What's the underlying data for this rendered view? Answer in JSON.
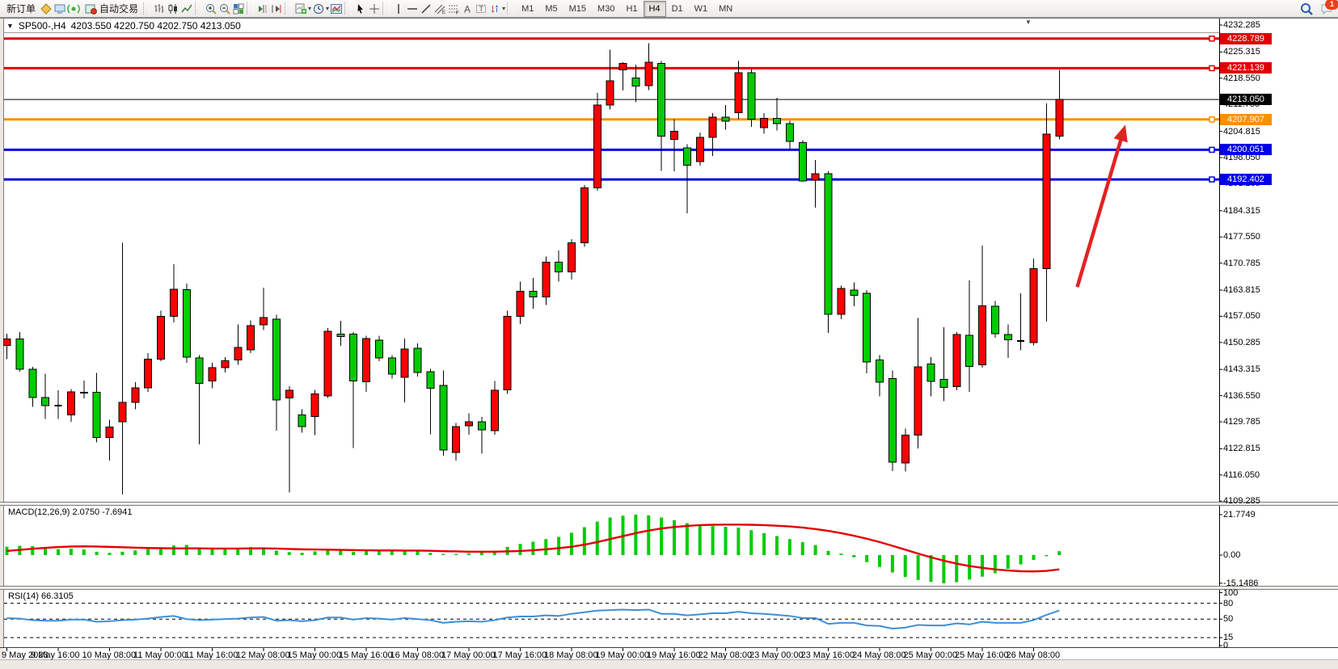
{
  "toolbar": {
    "new_order_label": "新订单",
    "auto_trading_label": "自动交易",
    "timeframes": [
      "M1",
      "M5",
      "M15",
      "M30",
      "H1",
      "H4",
      "D1",
      "W1",
      "MN"
    ],
    "active_timeframe": "H4",
    "notification_badge": "1"
  },
  "chart_title": {
    "dropdown_icon": "▼",
    "symbol_period": "SP500-,H4",
    "ohlc": "4203.550 4220.750 4202.750 4213.050"
  },
  "chart_data": {
    "type": "candlestick",
    "symbol": "SP500-",
    "period": "H4",
    "up_color": "#FF0000",
    "down_color": "#00CC00",
    "wick_color": "#000000",
    "price_axis_ticks": [
      "4232.285",
      "4225.315",
      "4218.550",
      "4211.785",
      "4204.815",
      "4198.050",
      "4191.285",
      "4184.315",
      "4177.550",
      "4170.785",
      "4163.815",
      "4157.050",
      "4150.285",
      "4143.315",
      "4136.550",
      "4129.785",
      "4122.815",
      "4116.050",
      "4109.285"
    ],
    "hlines": [
      {
        "price": 4228.789,
        "label": "4228.789",
        "color": "#DD0000",
        "width": 3,
        "current": false
      },
      {
        "price": 4221.139,
        "label": "4221.139",
        "color": "#DD0000",
        "width": 3,
        "current": false
      },
      {
        "price": 4213.05,
        "label": "4213.050",
        "color": "#000000",
        "width": 1,
        "current": true
      },
      {
        "price": 4207.907,
        "label": "4207.907",
        "color": "#FF8E00",
        "width": 3,
        "current": false
      },
      {
        "price": 4200.051,
        "label": "4200.051",
        "color": "#0000E6",
        "width": 3,
        "current": false
      },
      {
        "price": 4192.402,
        "label": "4192.402",
        "color": "#0000E6",
        "width": 3,
        "current": false
      }
    ],
    "time_labels": [
      "9 May 2023",
      "9 May 16:00",
      "10 May 08:00",
      "11 May 00:00",
      "11 May 16:00",
      "12 May 08:00",
      "15 May 00:00",
      "15 May 16:00",
      "16 May 08:00",
      "17 May 00:00",
      "17 May 16:00",
      "18 May 08:00",
      "19 May 00:00",
      "19 May 16:00",
      "22 May 08:00",
      "23 May 00:00",
      "23 May 16:00",
      "24 May 08:00",
      "25 May 00:00",
      "25 May 16:00",
      "26 May 08:00"
    ],
    "bars_per_label": 4,
    "candles": [
      [
        4149.5,
        4152.5,
        4146.0,
        4151.2
      ],
      [
        4151.2,
        4153.0,
        4142.7,
        4143.4
      ],
      [
        4143.4,
        4144.0,
        4133.7,
        4136.1
      ],
      [
        4136.1,
        4142.2,
        4130.5,
        4134.0
      ],
      [
        4134.0,
        4137.9,
        4130.5,
        4134.0
      ],
      [
        4131.6,
        4138.2,
        4129.8,
        4137.5
      ],
      [
        4137.4,
        4140.4,
        4135.8,
        4137.2
      ],
      [
        4137.4,
        4142.4,
        4124.5,
        4125.7
      ],
      [
        4125.7,
        4130.3,
        4119.8,
        4128.4
      ],
      [
        4129.8,
        4176.0,
        4111.0,
        4134.8
      ],
      [
        4134.8,
        4140.0,
        4133.0,
        4138.6
      ],
      [
        4138.6,
        4147.5,
        4137.5,
        4146.0
      ],
      [
        4146.0,
        4158.5,
        4145.5,
        4157.0
      ],
      [
        4157.0,
        4170.5,
        4155.5,
        4164.0
      ],
      [
        4163.9,
        4165.5,
        4145.0,
        4146.5
      ],
      [
        4146.3,
        4147.0,
        4124.0,
        4139.7
      ],
      [
        4140.3,
        4145.0,
        4138.5,
        4143.8
      ],
      [
        4143.8,
        4146.5,
        4142.5,
        4145.6
      ],
      [
        4145.8,
        4154.9,
        4144.5,
        4149.0
      ],
      [
        4148.4,
        4156.0,
        4147.5,
        4154.6
      ],
      [
        4154.8,
        4164.4,
        4153.5,
        4156.7
      ],
      [
        4156.3,
        4157.5,
        4127.5,
        4135.4
      ],
      [
        4136.0,
        4139.0,
        4111.5,
        4137.9
      ],
      [
        4131.6,
        4133.0,
        4127.0,
        4128.5
      ],
      [
        4131.2,
        4138.0,
        4126.4,
        4137.0
      ],
      [
        4136.5,
        4154.0,
        4136.0,
        4153.2
      ],
      [
        4152.4,
        4155.9,
        4149.4,
        4151.8
      ],
      [
        4152.4,
        4153.0,
        4123.0,
        4140.3
      ],
      [
        4140.1,
        4152.0,
        4137.5,
        4151.3
      ],
      [
        4150.9,
        4152.0,
        4145.5,
        4146.3
      ],
      [
        4146.3,
        4147.0,
        4141.0,
        4142.1
      ],
      [
        4141.3,
        4151.3,
        4134.8,
        4148.6
      ],
      [
        4148.8,
        4150.0,
        4141.5,
        4142.5
      ],
      [
        4142.7,
        4143.5,
        4126.6,
        4138.5
      ],
      [
        4139.2,
        4143.0,
        4121.0,
        4122.5
      ],
      [
        4121.9,
        4129.5,
        4119.8,
        4128.5
      ],
      [
        4128.7,
        4132.0,
        4126.5,
        4129.8
      ],
      [
        4129.8,
        4131.0,
        4121.5,
        4127.7
      ],
      [
        4127.5,
        4140.3,
        4126.5,
        4137.9
      ],
      [
        4138.0,
        4158.5,
        4137.0,
        4157.0
      ],
      [
        4157.0,
        4166.0,
        4155.0,
        4163.5
      ],
      [
        4163.5,
        4167.0,
        4159.0,
        4162.0
      ],
      [
        4162.0,
        4172.5,
        4160.0,
        4171.0
      ],
      [
        4171.0,
        4174.0,
        4166.0,
        4168.5
      ],
      [
        4168.5,
        4177.0,
        4166.5,
        4176.0
      ],
      [
        4176.0,
        4191.0,
        4175.0,
        4190.2
      ],
      [
        4190.2,
        4214.7,
        4189.5,
        4211.6
      ],
      [
        4211.6,
        4225.9,
        4210.5,
        4217.9
      ],
      [
        4220.7,
        4222.7,
        4215.4,
        4222.4
      ],
      [
        4218.6,
        4222.1,
        4212.3,
        4216.5
      ],
      [
        4216.6,
        4227.6,
        4215.5,
        4222.7
      ],
      [
        4222.4,
        4223.0,
        4194.6,
        4203.6
      ],
      [
        4202.7,
        4208.0,
        4194.5,
        4204.8
      ],
      [
        4200.6,
        4201.5,
        4183.6,
        4196.1
      ],
      [
        4197.0,
        4204.5,
        4196.0,
        4203.3
      ],
      [
        4203.3,
        4209.5,
        4198.5,
        4208.5
      ],
      [
        4208.5,
        4211.6,
        4205.3,
        4207.4
      ],
      [
        4209.6,
        4223.1,
        4208.0,
        4220.0
      ],
      [
        4220.0,
        4220.8,
        4206.0,
        4208.0
      ],
      [
        4205.8,
        4209.5,
        4204.2,
        4208.2
      ],
      [
        4208.2,
        4213.5,
        4205.0,
        4206.8
      ],
      [
        4206.8,
        4207.5,
        4200.1,
        4202.2
      ],
      [
        4201.9,
        4202.5,
        4191.8,
        4192.0
      ],
      [
        4192.2,
        4197.4,
        4185.1,
        4193.9
      ],
      [
        4193.9,
        4194.5,
        4152.8,
        4157.6
      ],
      [
        4157.6,
        4165.0,
        4156.3,
        4164.2
      ],
      [
        4163.8,
        4165.8,
        4159.6,
        4162.5
      ],
      [
        4163.0,
        4163.8,
        4142.3,
        4145.2
      ],
      [
        4145.8,
        4147.0,
        4136.4,
        4140.0
      ],
      [
        4141.0,
        4143.0,
        4117.1,
        4119.4
      ],
      [
        4119.1,
        4128.0,
        4117.0,
        4126.3
      ],
      [
        4126.3,
        4156.6,
        4122.9,
        4144.0
      ],
      [
        4144.7,
        4146.5,
        4136.4,
        4140.2
      ],
      [
        4140.8,
        4154.2,
        4135.1,
        4138.7
      ],
      [
        4138.9,
        4153.0,
        4137.9,
        4152.3
      ],
      [
        4152.1,
        4166.3,
        4137.5,
        4144.1
      ],
      [
        4144.5,
        4175.3,
        4143.8,
        4159.8
      ],
      [
        4159.6,
        4161.0,
        4151.5,
        4152.5
      ],
      [
        4152.3,
        4154.9,
        4146.3,
        4151.0
      ],
      [
        4150.7,
        4163.0,
        4148.3,
        4150.7
      ],
      [
        4150.3,
        4172.0,
        4149.5,
        4169.3
      ],
      [
        4169.3,
        4212.0,
        4155.7,
        4204.1
      ],
      [
        4203.55,
        4220.75,
        4202.75,
        4213.05
      ]
    ],
    "annotations": {
      "arrow": {
        "from_bar": 83.4,
        "from_price": 4164.6,
        "to_bar": 87.0,
        "to_price": 4204.9,
        "color": "#E32222"
      }
    },
    "macd": {
      "label": "MACD(12,26,9)",
      "value_text": "2.0750 -7.6941",
      "axis_ticks": [
        "21.7749",
        "0.00",
        "-15.1486"
      ],
      "axis_tick_values": [
        21.7749,
        0,
        -15.1486
      ],
      "histogram_color": "#00CC00",
      "signal_color": "#E00000",
      "histogram": [
        4.5,
        5.0,
        4.8,
        3.8,
        3.2,
        3.5,
        3.0,
        1.8,
        1.2,
        1.8,
        2.5,
        3.2,
        4.2,
        5.2,
        5.5,
        4.0,
        3.2,
        3.4,
        3.8,
        4.3,
        4.2,
        2.4,
        1.6,
        1.2,
        2.0,
        3.4,
        3.2,
        1.8,
        2.2,
        2.6,
        2.2,
        2.6,
        2.2,
        1.2,
        0.6,
        0.6,
        1.0,
        1.4,
        2.4,
        4.4,
        6.0,
        7.2,
        8.6,
        9.8,
        12.0,
        15.0,
        18.0,
        20.2,
        21.2,
        21.77,
        21.4,
        20.2,
        18.8,
        17.2,
        16.2,
        15.6,
        15.2,
        14.8,
        13.4,
        11.8,
        10.2,
        8.6,
        7.0,
        5.4,
        2.2,
        0.8,
        -1.2,
        -3.8,
        -6.4,
        -9.4,
        -11.8,
        -13.4,
        -14.4,
        -15.15,
        -14.6,
        -13.2,
        -11.6,
        -9.8,
        -7.4,
        -5.0,
        -2.6,
        -0.6,
        2.08
      ],
      "signal": [
        2.2,
        2.8,
        3.4,
        3.9,
        4.3,
        4.6,
        4.7,
        4.6,
        4.4,
        4.2,
        4.0,
        3.8,
        3.7,
        3.6,
        3.6,
        3.6,
        3.5,
        3.5,
        3.5,
        3.6,
        3.6,
        3.5,
        3.3,
        3.1,
        3.0,
        2.9,
        2.8,
        2.7,
        2.6,
        2.5,
        2.5,
        2.4,
        2.4,
        2.3,
        2.1,
        2.0,
        1.8,
        1.8,
        1.8,
        2.0,
        2.2,
        2.6,
        3.1,
        3.7,
        4.5,
        5.6,
        7.0,
        8.6,
        10.2,
        11.8,
        13.2,
        14.3,
        15.1,
        15.7,
        16.1,
        16.3,
        16.4,
        16.4,
        16.3,
        16.1,
        15.8,
        15.4,
        14.8,
        14.0,
        13.0,
        11.8,
        10.4,
        8.8,
        7.0,
        5.0,
        2.9,
        0.8,
        -1.2,
        -3.0,
        -4.6,
        -5.9,
        -6.9,
        -7.7,
        -8.3,
        -8.7,
        -8.8,
        -8.5,
        -7.69
      ]
    },
    "rsi": {
      "label": "RSI(14)",
      "value_text": "66.3105",
      "axis_ticks": [
        "100",
        "80",
        "50",
        "15",
        "0"
      ],
      "axis_tick_values": [
        100,
        80,
        50,
        15,
        0
      ],
      "levels": [
        80,
        50,
        15
      ],
      "line_color": "#3E8FD8",
      "values": [
        52,
        51,
        48,
        47,
        47,
        49,
        49,
        45,
        46,
        48,
        49,
        51,
        54,
        56,
        50,
        48,
        49,
        50,
        51,
        53,
        54,
        47,
        48,
        46,
        48,
        53,
        53,
        49,
        52,
        51,
        49,
        52,
        50,
        48,
        43,
        45,
        46,
        45,
        48,
        53,
        55,
        55,
        57,
        56,
        60,
        63,
        66,
        67,
        68,
        67,
        68,
        60,
        60,
        57,
        59,
        61,
        61,
        64,
        61,
        60,
        58,
        56,
        52,
        52,
        41,
        43,
        43,
        38,
        37,
        32,
        34,
        39,
        38,
        38,
        42,
        40,
        45,
        43,
        43,
        43,
        48,
        58,
        66.31
      ]
    }
  }
}
